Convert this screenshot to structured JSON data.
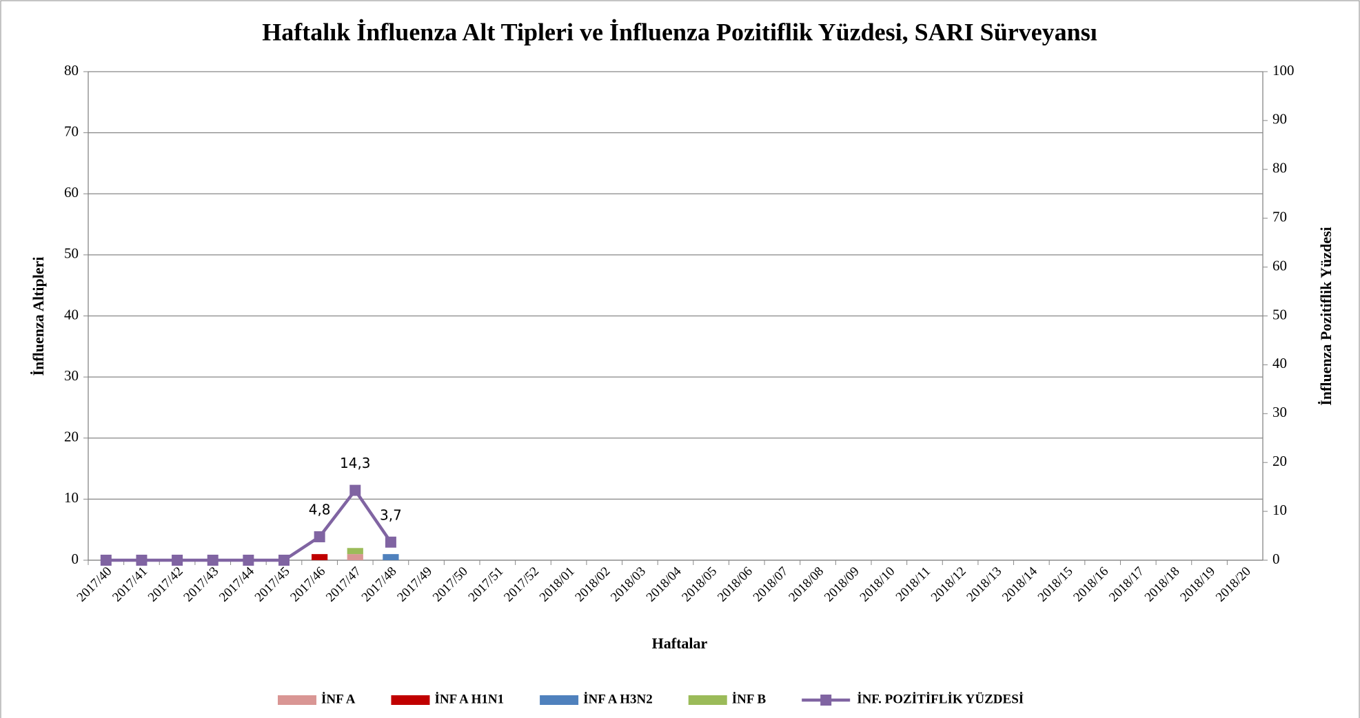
{
  "chart_data": {
    "type": "bar",
    "title": "Haftalık İnfluenza Alt Tipleri ve İnfluenza Pozitiflik Yüzdesi, SARI Sürveyansı",
    "x_label": "Haftalar",
    "y_label": "İnfluenza Altipleri",
    "y2_label": "İnfluenza Pozitiflik Yüzdesi",
    "categories": [
      "2017/40",
      "2017/41",
      "2017/42",
      "2017/43",
      "2017/44",
      "2017/45",
      "2017/46",
      "2017/47",
      "2017/48",
      "2017/49",
      "2017/50",
      "2017/51",
      "2017/52",
      "2018/01",
      "2018/02",
      "2018/03",
      "2018/04",
      "2018/05",
      "2018/06",
      "2018/07",
      "2018/08",
      "2018/09",
      "2018/10",
      "2018/11",
      "2018/12",
      "2018/13",
      "2018/14",
      "2018/15",
      "2018/16",
      "2018/17",
      "2018/18",
      "2018/19",
      "2018/20"
    ],
    "stacked": true,
    "series": [
      {
        "name": "İNF A",
        "type": "bar",
        "color": "#d99694",
        "values": [
          0,
          0,
          0,
          0,
          0,
          0,
          0,
          1,
          0,
          null,
          null,
          null,
          null,
          null,
          null,
          null,
          null,
          null,
          null,
          null,
          null,
          null,
          null,
          null,
          null,
          null,
          null,
          null,
          null,
          null,
          null,
          null,
          null
        ]
      },
      {
        "name": "İNF A H1N1",
        "type": "bar",
        "color": "#c00000",
        "values": [
          0,
          0,
          0,
          0,
          0,
          0,
          1,
          0,
          0,
          null,
          null,
          null,
          null,
          null,
          null,
          null,
          null,
          null,
          null,
          null,
          null,
          null,
          null,
          null,
          null,
          null,
          null,
          null,
          null,
          null,
          null,
          null,
          null
        ]
      },
      {
        "name": "İNF A H3N2",
        "type": "bar",
        "color": "#4f81bd",
        "values": [
          0,
          0,
          0,
          0,
          0,
          0,
          0,
          0,
          1,
          null,
          null,
          null,
          null,
          null,
          null,
          null,
          null,
          null,
          null,
          null,
          null,
          null,
          null,
          null,
          null,
          null,
          null,
          null,
          null,
          null,
          null,
          null,
          null
        ]
      },
      {
        "name": "İNF B",
        "type": "bar",
        "color": "#9bbb59",
        "values": [
          0,
          0,
          0,
          0,
          0,
          0,
          0,
          1,
          0,
          null,
          null,
          null,
          null,
          null,
          null,
          null,
          null,
          null,
          null,
          null,
          null,
          null,
          null,
          null,
          null,
          null,
          null,
          null,
          null,
          null,
          null,
          null,
          null
        ]
      },
      {
        "name": "İNF. POZİTİFLİK YÜZDESİ",
        "type": "line",
        "axis": "y2",
        "color": "#8064a2",
        "values": [
          0,
          0,
          0,
          0,
          0,
          0,
          4.8,
          14.3,
          3.7,
          null,
          null,
          null,
          null,
          null,
          null,
          null,
          null,
          null,
          null,
          null,
          null,
          null,
          null,
          null,
          null,
          null,
          null,
          null,
          null,
          null,
          null,
          null,
          null
        ],
        "value_labels": [
          null,
          null,
          null,
          null,
          null,
          null,
          "4,8",
          "14,3",
          "3,7",
          null,
          null,
          null,
          null,
          null,
          null,
          null,
          null,
          null,
          null,
          null,
          null,
          null,
          null,
          null,
          null,
          null,
          null,
          null,
          null,
          null,
          null,
          null,
          null
        ]
      }
    ],
    "ylim": [
      0,
      80
    ],
    "yticks": [
      0,
      10,
      20,
      30,
      40,
      50,
      60,
      70,
      80
    ],
    "y2lim": [
      0,
      100
    ],
    "y2ticks": [
      0,
      10,
      20,
      30,
      40,
      50,
      60,
      70,
      80,
      90,
      100
    ],
    "grid": true,
    "legend": "bottom"
  }
}
